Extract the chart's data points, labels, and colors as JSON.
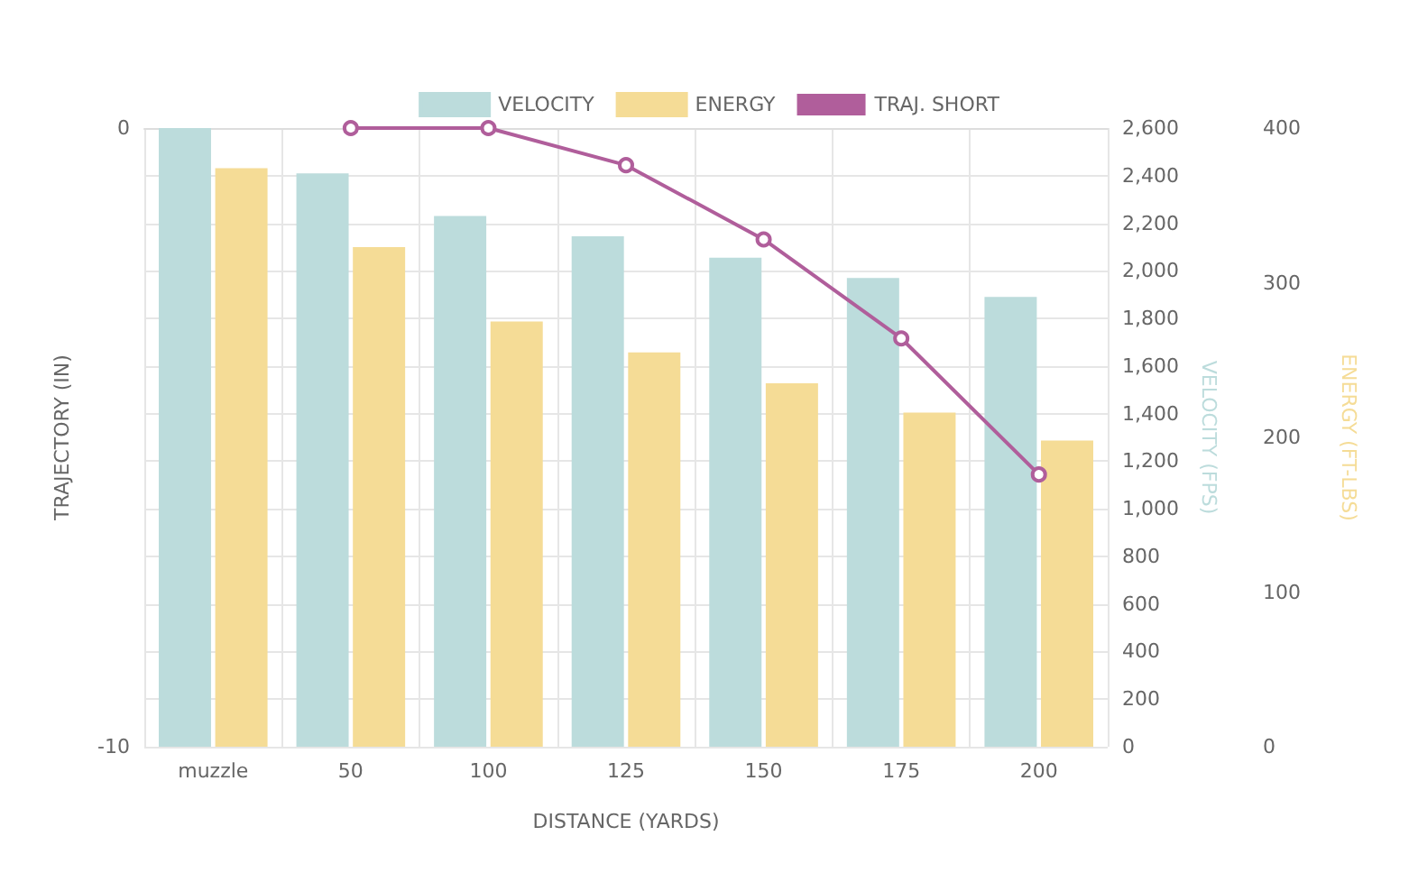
{
  "chart_data": {
    "type": "bar",
    "xlabel": "DISTANCE (YARDS)",
    "ylabel": "TRAJECTORY (IN)",
    "y2label": "VELOCITY (FPS)",
    "y3label": "ENERGY (FT-LBS)",
    "categories": [
      "muzzle",
      "50",
      "100",
      "125",
      "150",
      "175",
      "200"
    ],
    "series": [
      {
        "name": "VELOCITY",
        "axis": "y2",
        "color": "#bcdcdc",
        "values": [
          2600,
          2410,
          2230,
          2145,
          2055,
          1970,
          1890
        ]
      },
      {
        "name": "ENERGY",
        "axis": "y3",
        "color": "#f5dc96",
        "values": [
          374,
          323,
          275,
          255,
          235,
          216,
          198
        ]
      },
      {
        "name": "TRAJ. SHORT",
        "type": "line",
        "axis": "y",
        "color": "#b05e9b",
        "marker": "circle",
        "values": [
          null,
          0,
          0,
          -0.6,
          -1.8,
          -3.4,
          -5.6
        ]
      }
    ],
    "ylim": [
      -10,
      0
    ],
    "yticks": [
      -10,
      0
    ],
    "y2lim": [
      0,
      2600
    ],
    "y2ticks": [
      0,
      200,
      400,
      600,
      800,
      {
        "value": 1000,
        "label": "1,000"
      },
      {
        "value": 1200,
        "label": "1,200"
      },
      {
        "value": 1400,
        "label": "1,400"
      },
      {
        "value": 1600,
        "label": "1,600"
      },
      {
        "value": 1800,
        "label": "1,800"
      },
      {
        "value": 2000,
        "label": "2,000"
      },
      {
        "value": 2200,
        "label": "2,200"
      },
      {
        "value": 2400,
        "label": "2,400"
      },
      {
        "value": 2600,
        "label": "2,600"
      }
    ],
    "y3lim": [
      0,
      400
    ],
    "y3ticks": [
      0,
      100,
      200,
      300,
      400
    ],
    "grid": true,
    "legend": "top"
  }
}
